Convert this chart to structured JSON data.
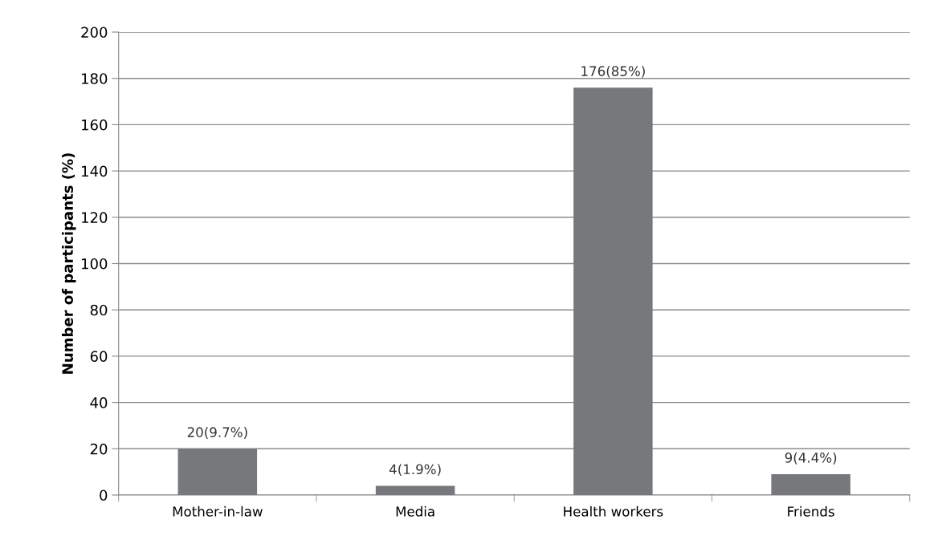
{
  "chart_data": {
    "type": "bar",
    "ylabel": "Number of participants (%)",
    "categories": [
      "Mother-in-law",
      "Media",
      "Health workers",
      "Friends"
    ],
    "values": [
      20,
      4,
      176,
      9
    ],
    "value_labels": [
      "20(9.7%)",
      "4(1.9%)",
      "176(85%)",
      "9(4.4%)"
    ],
    "color": "#77787b",
    "ylim": [
      0,
      200
    ],
    "yticks": [
      0,
      20,
      40,
      60,
      80,
      100,
      120,
      140,
      160,
      180,
      200
    ],
    "grid": "y",
    "legend": false
  }
}
